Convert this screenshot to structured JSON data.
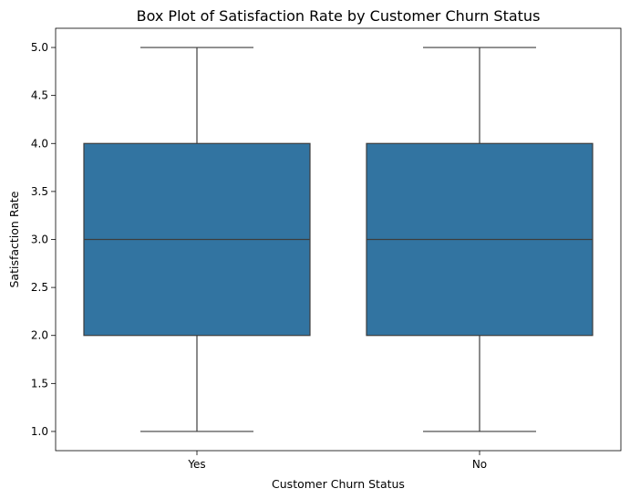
{
  "chart_data": {
    "type": "box",
    "title": "Box Plot of Satisfaction Rate by Customer Churn Status",
    "xlabel": "Customer Churn Status",
    "ylabel": "Satisfaction Rate",
    "categories": [
      "Yes",
      "No"
    ],
    "boxes": [
      {
        "category": "Yes",
        "min": 1.0,
        "q1": 2.0,
        "median": 3.0,
        "q3": 4.0,
        "max": 5.0
      },
      {
        "category": "No",
        "min": 1.0,
        "q1": 2.0,
        "median": 3.0,
        "q3": 4.0,
        "max": 5.0
      }
    ],
    "ylim": [
      0.8,
      5.2
    ],
    "yticks": [
      1.0,
      1.5,
      2.0,
      2.5,
      3.0,
      3.5,
      4.0,
      4.5,
      5.0
    ],
    "ytick_labels": [
      "1.0",
      "1.5",
      "2.0",
      "2.5",
      "3.0",
      "3.5",
      "4.0",
      "4.5",
      "5.0"
    ],
    "grid": false,
    "legend": "none",
    "colors": {
      "box_fill": "#3274a1",
      "line": "#3d3d3d"
    }
  }
}
